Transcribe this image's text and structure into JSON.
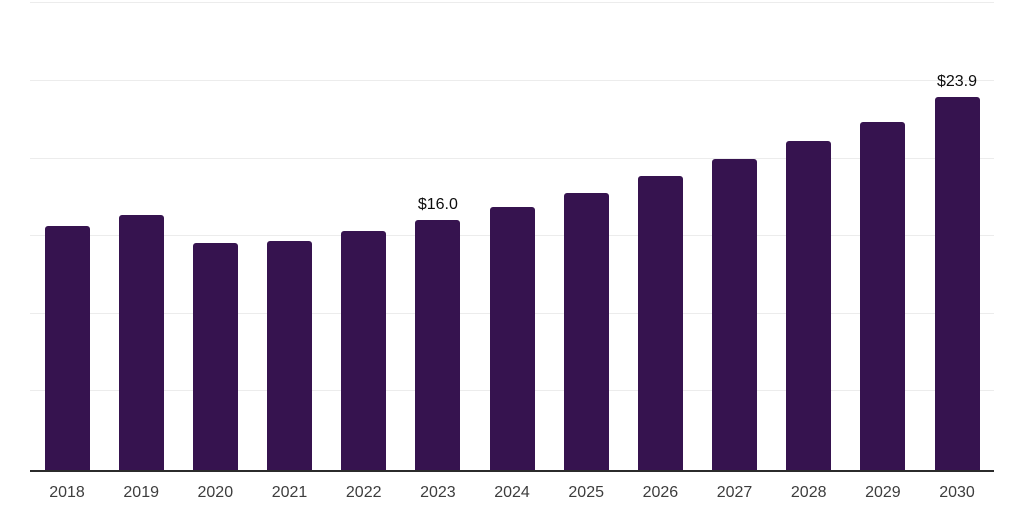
{
  "page": {
    "background": "#ffffff"
  },
  "chart_data": {
    "type": "bar",
    "title": "",
    "xlabel": "",
    "ylabel": "",
    "categories": [
      "2018",
      "2019",
      "2020",
      "2021",
      "2022",
      "2023",
      "2024",
      "2025",
      "2026",
      "2027",
      "2028",
      "2029",
      "2030"
    ],
    "values": [
      15.6,
      16.3,
      14.5,
      14.6,
      15.3,
      16.0,
      16.8,
      17.7,
      18.8,
      19.9,
      21.1,
      22.3,
      23.9
    ],
    "data_labels": [
      "",
      "",
      "",
      "",
      "",
      "$16.0",
      "",
      "",
      "",
      "",
      "",
      "",
      "$23.9"
    ],
    "ylim": [
      0,
      30
    ],
    "gridline_interval": 5,
    "grid": "horizontal",
    "legend_position": "none",
    "y_axis_tick_labels_visible": false,
    "colors": {
      "bar": "#36134f",
      "gridline": "#ececec",
      "axis_line": "#2b2b2b",
      "tick_label": "#3d3d3d",
      "data_label": "#0d0d0d"
    }
  }
}
